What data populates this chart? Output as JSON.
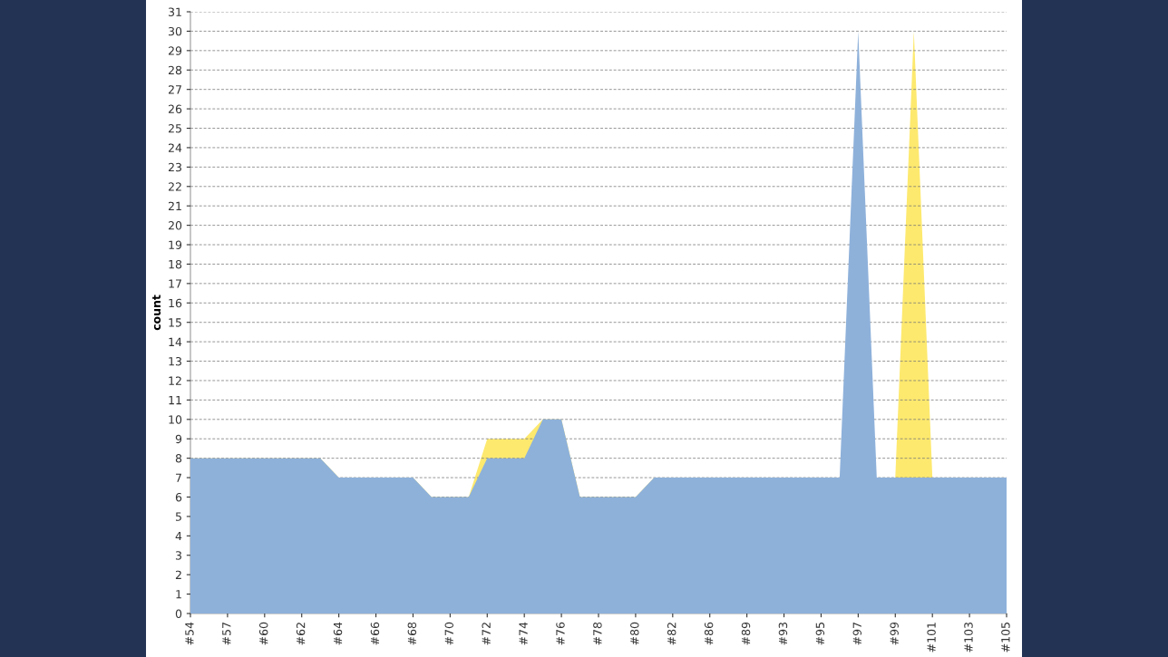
{
  "chart_data": {
    "type": "area",
    "ylabel": "count",
    "categories": [
      "#54",
      null,
      "#57",
      null,
      "#60",
      null,
      "#62",
      null,
      "#64",
      null,
      "#66",
      null,
      "#68",
      null,
      "#70",
      null,
      "#72",
      null,
      "#74",
      null,
      "#76",
      null,
      "#78",
      null,
      "#80",
      null,
      "#82",
      null,
      "#86",
      null,
      "#89",
      null,
      "#93",
      null,
      "#95",
      null,
      "#97",
      null,
      "#99",
      null,
      "#101",
      null,
      "#103",
      null,
      "#105"
    ],
    "series": [
      {
        "color": "#fde96e",
        "values": [
          8,
          8,
          8,
          8,
          8,
          8,
          8,
          8,
          7,
          7,
          7,
          7,
          7,
          6,
          6,
          6,
          9,
          9,
          9,
          10,
          10,
          6,
          6,
          6,
          6,
          7,
          7,
          7,
          7,
          7,
          7,
          7,
          7,
          7,
          7,
          7,
          null,
          7,
          7,
          30,
          7,
          7,
          7,
          7,
          7
        ]
      },
      {
        "color": "#8eb1da",
        "values": [
          8,
          8,
          8,
          8,
          8,
          8,
          8,
          8,
          7,
          7,
          7,
          7,
          7,
          6,
          6,
          6,
          8,
          8,
          8,
          10,
          10,
          6,
          6,
          6,
          6,
          7,
          7,
          7,
          7,
          7,
          7,
          7,
          7,
          7,
          7,
          7,
          30,
          7,
          7,
          7,
          7,
          7,
          7,
          7,
          7
        ]
      }
    ],
    "ylim": [
      0,
      31
    ],
    "yticks": [
      0,
      1,
      2,
      3,
      4,
      5,
      6,
      7,
      8,
      9,
      10,
      11,
      12,
      13,
      14,
      15,
      16,
      17,
      18,
      19,
      20,
      21,
      22,
      23,
      24,
      25,
      26,
      27,
      28,
      29,
      30,
      31
    ],
    "grid": "y",
    "legend": false
  }
}
